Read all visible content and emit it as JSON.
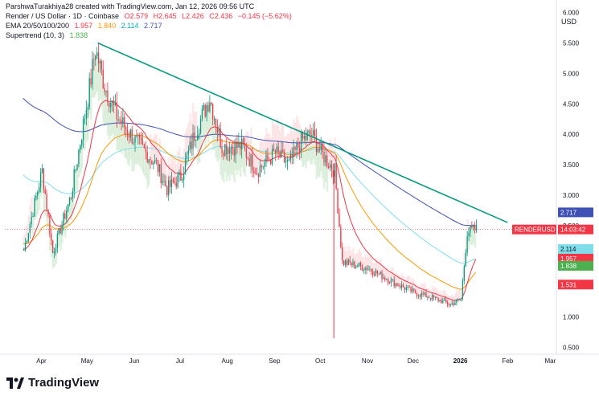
{
  "header": {
    "created_by": "ParshwaTurakhiya28 created with TradingView.com, Jan 12, 2026 09:56 UTC",
    "symbol": "Render / US Dollar · 1D · Coinbase",
    "ohlc": {
      "open": "O2.579",
      "high": "H2.645",
      "low": "L2.426",
      "close": "C2.436",
      "change": "−0.145 (−5.62%)"
    },
    "ema_label": "EMA 20/50/100/200",
    "ema_values": [
      "1.957",
      "1.840",
      "2.114",
      "2.717"
    ],
    "supertrend_label": "Supertrend (10, 3)",
    "supertrend_value": "1.838"
  },
  "currency": "USD",
  "brand": "TradingView",
  "symbol_tag": "RENDERUSD",
  "countdown": "14:03:42",
  "badges": [
    {
      "value": "2.717",
      "color": "#3f51b5",
      "text_color": "#ffffff"
    },
    {
      "value": "2.114",
      "color": "#80deea",
      "text_color": "#131722"
    },
    {
      "value": "1.957",
      "color": "#f23645",
      "text_color": "#ffffff"
    },
    {
      "value": "1.840",
      "color": "#ff9800",
      "text_color": "#ffffff"
    },
    {
      "value": "1.838",
      "color": "#4caf50",
      "text_color": "#ffffff"
    },
    {
      "value": "1.531",
      "color": "#f23645",
      "text_color": "#ffffff"
    }
  ],
  "colors": {
    "up": "#089981",
    "down": "#f23645",
    "trendline": "#089981",
    "ema20": "#f23645",
    "ema50": "#ff9800",
    "ema100": "#80deea",
    "ema200": "#3f51b5",
    "supertrend_up": "#4caf50",
    "supertrend_down": "#f23645"
  },
  "chart_data": {
    "type": "line",
    "title": "Render / US Dollar · 1D · Coinbase",
    "xlabel": "",
    "ylabel": "USD",
    "x_tick_labels": [
      "Apr",
      "May",
      "Jun",
      "Jul",
      "Aug",
      "Sep",
      "Oct",
      "Nov",
      "Dec",
      "2026",
      "Feb",
      "Mar"
    ],
    "y_tick_labels": [
      "0.500",
      "1.000",
      "1.500",
      "2.000",
      "2.500",
      "3.000",
      "3.500",
      "4.000",
      "4.500",
      "5.000",
      "5.500",
      "6.000"
    ],
    "ylim": [
      0.4,
      6.1
    ],
    "grid": false,
    "series": [
      {
        "name": "close",
        "x": [
          "2025-03-20",
          "2025-04-01",
          "2025-04-08",
          "2025-04-20",
          "2025-05-01",
          "2025-05-06",
          "2025-05-12",
          "2025-05-20",
          "2025-06-01",
          "2025-06-15",
          "2025-06-22",
          "2025-07-01",
          "2025-07-10",
          "2025-07-20",
          "2025-07-28",
          "2025-08-10",
          "2025-08-20",
          "2025-09-01",
          "2025-09-10",
          "2025-09-18",
          "2025-09-25",
          "2025-10-01",
          "2025-10-10",
          "2025-10-15",
          "2025-11-01",
          "2025-11-15",
          "2025-12-01",
          "2025-12-15",
          "2025-12-25",
          "2026-01-01",
          "2026-01-05",
          "2026-01-11"
        ],
        "values": [
          2.1,
          3.4,
          2.05,
          3.0,
          4.6,
          5.4,
          4.8,
          4.3,
          3.9,
          3.5,
          3.1,
          3.3,
          4.0,
          4.6,
          3.8,
          3.8,
          3.4,
          3.7,
          3.5,
          3.9,
          4.0,
          3.7,
          3.4,
          1.9,
          1.8,
          1.6,
          1.4,
          1.3,
          1.2,
          1.3,
          2.4,
          2.44
        ]
      },
      {
        "name": "",
        "x": [
          "2025-05-08",
          "2026-02-01"
        ],
        "values": [
          5.5,
          2.55
        ]
      }
    ],
    "annotations": {
      "wick_low_oct_10": 0.65,
      "high_may": 5.55
    }
  }
}
